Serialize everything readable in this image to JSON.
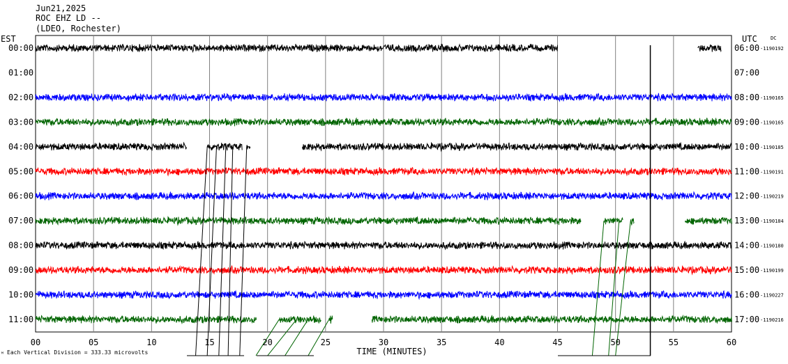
{
  "header": {
    "date": "Jun21,2025",
    "station": "ROC EHZ LD --",
    "network": "(LDEO, Rochester)"
  },
  "left_axis_label": "EST",
  "right_axis_label": "UTC",
  "dc_label": "DC",
  "x_axis_title": "TIME (MINUTES)",
  "footnote": "Each Vertical Division =  333.33 microvolts",
  "footnote_symbol": "ᴹ",
  "chart_data": {
    "type": "line",
    "title": "ROC EHZ LD --",
    "xlabel": "TIME (MINUTES)",
    "xlim": [
      0,
      60
    ],
    "x_ticks": [
      "00",
      "05",
      "10",
      "15",
      "20",
      "25",
      "30",
      "35",
      "40",
      "45",
      "50",
      "55",
      "60"
    ],
    "colors": {
      "black": "#000000",
      "blue": "#0000ff",
      "green": "#006400",
      "red": "#ff0000",
      "grid": "#808080"
    },
    "rows": [
      {
        "est": "00:00",
        "utc": "06:00",
        "dc": "-1190192",
        "color": "black",
        "segments": [
          [
            0,
            45
          ],
          [
            57.1,
            59.1
          ]
        ]
      },
      {
        "est": "01:00",
        "utc": "07:00",
        "dc": "",
        "color": "black",
        "segments": []
      },
      {
        "est": "02:00",
        "utc": "08:00",
        "dc": "-1190165",
        "color": "blue",
        "segments": [
          [
            0,
            60
          ]
        ]
      },
      {
        "est": "03:00",
        "utc": "09:00",
        "dc": "-1190165",
        "color": "green",
        "segments": [
          [
            0,
            60
          ]
        ]
      },
      {
        "est": "04:00",
        "utc": "10:00",
        "dc": "-1190185",
        "color": "black",
        "segments": [
          [
            0,
            13
          ],
          [
            14.8,
            17.8
          ],
          [
            18.2,
            18.5
          ],
          [
            23,
            60
          ]
        ]
      },
      {
        "est": "05:00",
        "utc": "11:00",
        "dc": "-1190191",
        "color": "red",
        "segments": [
          [
            0,
            60
          ]
        ]
      },
      {
        "est": "06:00",
        "utc": "12:00",
        "dc": "-1190219",
        "color": "blue",
        "segments": [
          [
            0,
            60
          ]
        ]
      },
      {
        "est": "07:00",
        "utc": "13:00",
        "dc": "-1190184",
        "color": "green",
        "segments": [
          [
            0,
            47
          ],
          [
            49,
            50.6
          ],
          [
            51.3,
            51.6
          ],
          [
            56,
            60
          ]
        ]
      },
      {
        "est": "08:00",
        "utc": "14:00",
        "dc": "-1190180",
        "color": "black",
        "segments": [
          [
            0,
            60
          ]
        ]
      },
      {
        "est": "09:00",
        "utc": "15:00",
        "dc": "-1190199",
        "color": "red",
        "segments": [
          [
            0,
            60
          ]
        ]
      },
      {
        "est": "10:00",
        "utc": "16:00",
        "dc": "-1190227",
        "color": "blue",
        "segments": [
          [
            0,
            60
          ]
        ]
      },
      {
        "est": "11:00",
        "utc": "17:00",
        "dc": "-1190216",
        "color": "green",
        "segments": [
          [
            0,
            19
          ],
          [
            21,
            24.6
          ],
          [
            25.3,
            25.6
          ],
          [
            29,
            60
          ]
        ]
      }
    ]
  }
}
